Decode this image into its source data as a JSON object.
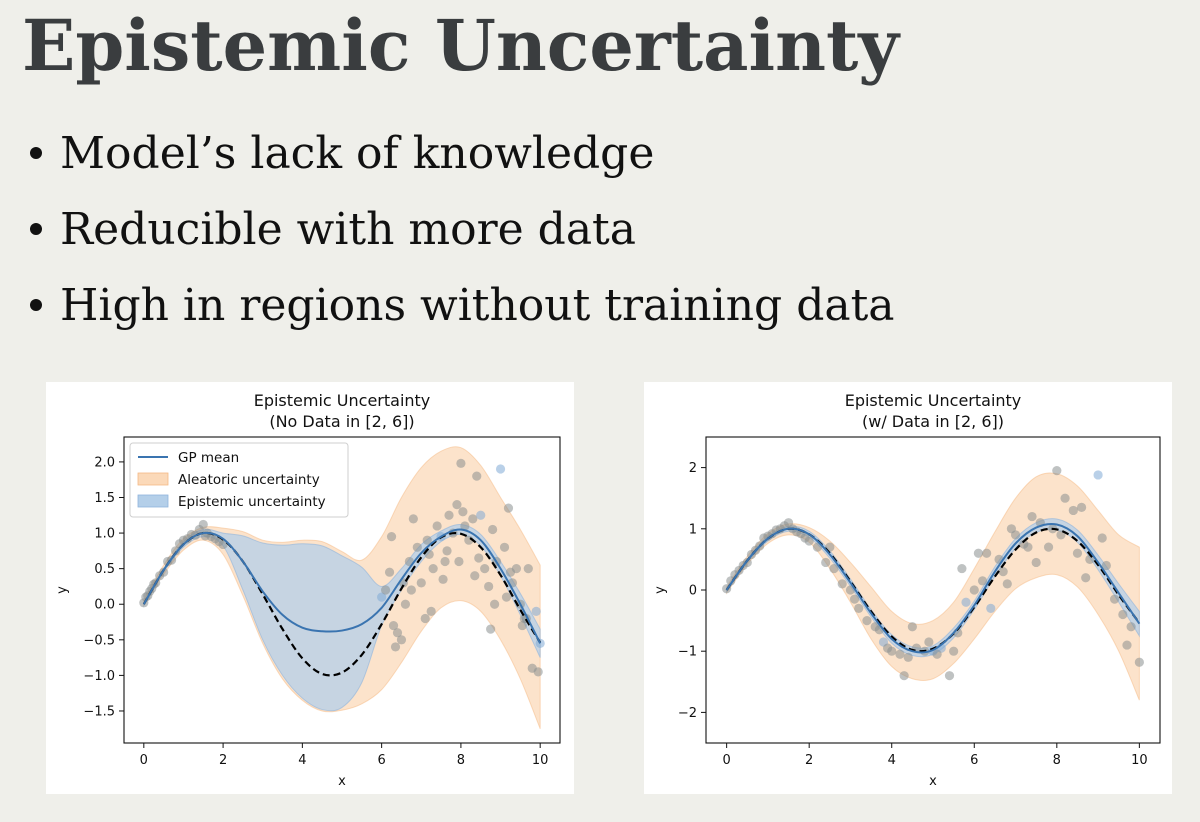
{
  "slide": {
    "title": "Epistemic Uncertainty",
    "bullets": [
      "Model’s lack of knowledge",
      "Reducible with more data",
      "High in regions without training data"
    ]
  },
  "colors": {
    "gp_mean": "#3a74b0",
    "true_function": "#000000",
    "aleatoric_fill": "#fbd9b9",
    "epistemic_fill": "#b4cfe9",
    "points": "#8a8f8f"
  },
  "chart_data": [
    {
      "type": "line",
      "title": "Epistemic Uncertainty",
      "subtitle": "(No Data in [2, 6])",
      "xlabel": "x",
      "ylabel": "y",
      "xlim": [
        -0.5,
        10.5
      ],
      "ylim": [
        -1.95,
        2.35
      ],
      "xticks": [
        0,
        2,
        4,
        6,
        8,
        10
      ],
      "yticks": [
        -1.5,
        -1.0,
        -0.5,
        0.0,
        0.5,
        1.0,
        1.5,
        2.0
      ],
      "ytick_labels": [
        "−1.5",
        "−1.0",
        "−0.5",
        "0.0",
        "0.5",
        "1.0",
        "1.5",
        "2.0"
      ],
      "legend": {
        "position": "top-left",
        "entries": [
          "GP mean",
          "Aleatoric uncertainty",
          "Epistemic uncertainty"
        ]
      },
      "series": [
        {
          "name": "GP mean",
          "x": [
            0,
            0.5,
            1,
            1.5,
            2,
            2.5,
            3,
            3.5,
            4,
            4.5,
            5,
            5.5,
            6,
            6.5,
            7,
            7.5,
            8,
            8.5,
            9,
            9.5,
            10
          ],
          "y": [
            0.0,
            0.48,
            0.84,
            1.0,
            0.92,
            0.6,
            0.18,
            -0.15,
            -0.33,
            -0.38,
            -0.37,
            -0.28,
            -0.05,
            0.35,
            0.72,
            0.95,
            1.05,
            0.9,
            0.5,
            0.0,
            -0.55
          ]
        },
        {
          "name": "true function",
          "x": [
            0,
            0.5,
            1,
            1.5,
            2,
            2.5,
            3,
            3.5,
            4,
            4.5,
            5,
            5.5,
            6,
            6.5,
            7,
            7.5,
            8,
            8.5,
            9,
            9.5,
            10
          ],
          "y": [
            0.0,
            0.48,
            0.84,
            1.0,
            0.91,
            0.6,
            0.14,
            -0.35,
            -0.76,
            -0.98,
            -0.96,
            -0.71,
            -0.28,
            0.22,
            0.66,
            0.94,
            0.99,
            0.8,
            0.41,
            -0.08,
            -0.54
          ]
        }
      ],
      "aleatoric_band": {
        "x": [
          0,
          0.5,
          1,
          1.5,
          2,
          2.5,
          3,
          3.5,
          4,
          4.5,
          5,
          5.5,
          6,
          6.5,
          7,
          7.5,
          8,
          8.5,
          9,
          9.5,
          10
        ],
        "lower": [
          0.0,
          0.42,
          0.76,
          0.9,
          0.7,
          0.12,
          -0.55,
          -1.05,
          -1.35,
          -1.5,
          -1.49,
          -1.4,
          -1.2,
          -0.82,
          -0.38,
          -0.05,
          0.05,
          -0.1,
          -0.5,
          -1.05,
          -1.75
        ],
        "upper": [
          0.05,
          0.55,
          0.92,
          1.08,
          1.07,
          1.02,
          0.9,
          0.87,
          0.9,
          0.88,
          0.74,
          0.62,
          0.95,
          1.5,
          1.92,
          2.15,
          2.2,
          1.95,
          1.5,
          1.05,
          0.55
        ]
      },
      "epistemic_band": {
        "x": [
          0,
          0.5,
          1,
          1.5,
          2,
          2.5,
          3,
          3.5,
          4,
          4.5,
          5,
          5.5,
          6,
          6.5,
          7,
          7.5,
          8,
          8.5,
          9,
          9.5,
          10
        ],
        "lower": [
          -0.02,
          0.45,
          0.8,
          0.95,
          0.82,
          0.2,
          -0.5,
          -1.0,
          -1.32,
          -1.48,
          -1.45,
          -1.1,
          -0.3,
          0.2,
          0.6,
          0.88,
          0.98,
          0.82,
          0.4,
          -0.15,
          -0.75
        ],
        "upper": [
          0.02,
          0.5,
          0.88,
          1.05,
          1.0,
          0.96,
          0.86,
          0.83,
          0.85,
          0.82,
          0.68,
          0.52,
          0.25,
          0.5,
          0.84,
          1.03,
          1.12,
          0.98,
          0.6,
          0.15,
          -0.35
        ]
      },
      "scatter": {
        "x": [
          0,
          0.05,
          0.1,
          0.15,
          0.2,
          0.25,
          0.3,
          0.4,
          0.5,
          0.6,
          0.7,
          0.8,
          0.9,
          1.0,
          1.1,
          1.2,
          1.3,
          1.4,
          1.5,
          1.55,
          1.6,
          1.7,
          1.8,
          1.9,
          2.0,
          6.0,
          6.1,
          6.2,
          6.25,
          6.3,
          6.4,
          6.5,
          6.6,
          6.7,
          6.8,
          6.9,
          7.0,
          7.1,
          7.2,
          7.3,
          7.4,
          7.5,
          7.6,
          7.7,
          7.8,
          7.9,
          8.0,
          8.1,
          8.2,
          8.3,
          8.4,
          8.5,
          8.6,
          8.7,
          8.8,
          8.9,
          9.0,
          9.1,
          9.2,
          9.3,
          9.4,
          9.5,
          9.6,
          9.7,
          9.8,
          9.9,
          10.0,
          6.35,
          6.75,
          7.15,
          7.55,
          7.95,
          8.35,
          8.75,
          9.15,
          9.55,
          9.95,
          6.55,
          7.25,
          7.65,
          8.05,
          8.45,
          8.85,
          9.25,
          9.65
        ],
        "y": [
          0.02,
          0.1,
          0.12,
          0.18,
          0.22,
          0.28,
          0.3,
          0.4,
          0.45,
          0.6,
          0.62,
          0.75,
          0.85,
          0.9,
          0.92,
          0.98,
          0.97,
          1.05,
          1.12,
          0.96,
          1.0,
          0.95,
          0.92,
          0.88,
          0.84,
          0.1,
          0.2,
          0.45,
          0.95,
          -0.3,
          -0.4,
          -0.5,
          0.0,
          0.6,
          1.2,
          0.8,
          0.3,
          -0.2,
          0.7,
          0.5,
          1.1,
          0.95,
          0.6,
          1.25,
          1.0,
          1.4,
          1.98,
          1.1,
          0.9,
          1.2,
          1.8,
          1.25,
          0.5,
          0.25,
          1.05,
          0.6,
          1.9,
          0.8,
          1.35,
          0.3,
          0.5,
          0.0,
          -0.2,
          0.5,
          -0.9,
          -0.1,
          -0.55,
          -0.6,
          0.2,
          0.9,
          0.35,
          0.6,
          0.4,
          -0.35,
          0.1,
          -0.3,
          -0.95,
          0.3,
          -0.1,
          0.75,
          1.3,
          0.65,
          0.0,
          0.45,
          -0.2
        ],
        "highlighted_x": [
          6.0,
          8.5,
          9.0,
          10.0,
          9.9,
          7.5
        ]
      }
    },
    {
      "type": "line",
      "title": "Epistemic Uncertainty",
      "subtitle": "(w/ Data in [2, 6])",
      "xlabel": "x",
      "ylabel": "y",
      "xlim": [
        -0.5,
        10.5
      ],
      "ylim": [
        -2.5,
        2.5
      ],
      "xticks": [
        0,
        2,
        4,
        6,
        8,
        10
      ],
      "yticks": [
        -2,
        -1,
        0,
        1,
        2
      ],
      "ytick_labels": [
        "−2",
        "−1",
        "0",
        "1",
        "2"
      ],
      "series": [
        {
          "name": "GP mean",
          "x": [
            0,
            0.5,
            1,
            1.5,
            2,
            2.5,
            3,
            3.5,
            4,
            4.5,
            5,
            5.5,
            6,
            6.5,
            7,
            7.5,
            8,
            8.5,
            9,
            9.5,
            10
          ],
          "y": [
            0.0,
            0.48,
            0.84,
            1.0,
            0.91,
            0.58,
            0.12,
            -0.38,
            -0.8,
            -1.0,
            -0.98,
            -0.7,
            -0.25,
            0.3,
            0.76,
            1.02,
            1.07,
            0.88,
            0.45,
            -0.05,
            -0.55
          ]
        },
        {
          "name": "true function",
          "x": [
            0,
            0.5,
            1,
            1.5,
            2,
            2.5,
            3,
            3.5,
            4,
            4.5,
            5,
            5.5,
            6,
            6.5,
            7,
            7.5,
            8,
            8.5,
            9,
            9.5,
            10
          ],
          "y": [
            0.0,
            0.48,
            0.84,
            1.0,
            0.91,
            0.6,
            0.14,
            -0.35,
            -0.76,
            -0.98,
            -0.96,
            -0.71,
            -0.28,
            0.22,
            0.66,
            0.94,
            0.99,
            0.8,
            0.41,
            -0.08,
            -0.54
          ]
        }
      ],
      "aleatoric_band": {
        "x": [
          0,
          0.5,
          1,
          1.5,
          2,
          2.5,
          3,
          3.5,
          4,
          4.5,
          5,
          5.5,
          6,
          6.5,
          7,
          7.5,
          8,
          8.5,
          9,
          9.5,
          10
        ],
        "lower": [
          -0.05,
          0.42,
          0.76,
          0.9,
          0.78,
          0.35,
          -0.2,
          -0.8,
          -1.25,
          -1.45,
          -1.45,
          -1.2,
          -0.8,
          -0.35,
          0.02,
          0.2,
          0.25,
          0.05,
          -0.4,
          -1.0,
          -1.8
        ],
        "upper": [
          0.05,
          0.55,
          0.92,
          1.08,
          1.02,
          0.8,
          0.45,
          0.05,
          -0.35,
          -0.55,
          -0.5,
          -0.2,
          0.35,
          0.95,
          1.5,
          1.85,
          1.9,
          1.7,
          1.3,
          0.9,
          0.7
        ]
      },
      "epistemic_band": {
        "x": [
          0,
          0.5,
          1,
          1.5,
          2,
          2.5,
          3,
          3.5,
          4,
          4.5,
          5,
          5.5,
          6,
          6.5,
          7,
          7.5,
          8,
          8.5,
          9,
          9.5,
          10
        ],
        "lower": [
          -0.03,
          0.45,
          0.8,
          0.96,
          0.86,
          0.52,
          0.06,
          -0.44,
          -0.87,
          -1.07,
          -1.05,
          -0.78,
          -0.32,
          0.22,
          0.68,
          0.94,
          0.98,
          0.78,
          0.33,
          -0.2,
          -0.75
        ],
        "upper": [
          0.03,
          0.51,
          0.88,
          1.04,
          0.96,
          0.64,
          0.18,
          -0.32,
          -0.73,
          -0.93,
          -0.91,
          -0.62,
          -0.18,
          0.38,
          0.84,
          1.1,
          1.16,
          0.98,
          0.57,
          0.1,
          -0.35
        ]
      },
      "scatter": {
        "x": [
          0,
          0.1,
          0.2,
          0.3,
          0.4,
          0.5,
          0.6,
          0.7,
          0.8,
          0.9,
          1.0,
          1.1,
          1.2,
          1.3,
          1.4,
          1.5,
          1.6,
          1.7,
          1.8,
          1.9,
          2.0,
          2.2,
          2.4,
          2.6,
          2.8,
          3.0,
          3.2,
          3.4,
          3.6,
          3.8,
          4.0,
          4.2,
          4.4,
          4.6,
          4.8,
          5.0,
          5.2,
          5.4,
          5.6,
          5.8,
          6.0,
          6.2,
          6.4,
          6.6,
          6.8,
          7.0,
          7.2,
          7.4,
          7.6,
          7.8,
          8.0,
          8.2,
          8.4,
          8.6,
          8.8,
          9.0,
          9.2,
          9.4,
          9.6,
          9.8,
          10.0,
          2.5,
          3.1,
          3.7,
          4.3,
          4.9,
          5.5,
          6.1,
          6.7,
          7.3,
          7.9,
          8.5,
          9.1,
          9.7,
          3.9,
          4.5,
          5.1,
          5.7,
          6.3,
          6.9,
          7.5,
          8.1,
          8.7
        ],
        "y": [
          0.02,
          0.15,
          0.25,
          0.32,
          0.4,
          0.45,
          0.58,
          0.65,
          0.72,
          0.85,
          0.88,
          0.92,
          0.98,
          1.0,
          1.05,
          1.1,
          1.0,
          0.95,
          0.92,
          0.85,
          0.8,
          0.7,
          0.45,
          0.35,
          0.1,
          0.0,
          -0.3,
          -0.5,
          -0.6,
          -0.85,
          -1.0,
          -1.05,
          -1.1,
          -0.95,
          -1.0,
          -1.0,
          -0.95,
          -1.4,
          -0.7,
          -0.2,
          0.0,
          0.15,
          -0.3,
          0.5,
          0.1,
          0.9,
          0.75,
          1.2,
          1.1,
          0.7,
          1.95,
          1.5,
          1.3,
          1.35,
          0.5,
          1.88,
          0.4,
          -0.15,
          -0.4,
          -0.6,
          -1.18,
          0.7,
          -0.15,
          -0.65,
          -1.4,
          -0.85,
          -1.0,
          0.6,
          0.3,
          0.7,
          1.0,
          0.6,
          0.85,
          -0.9,
          -0.95,
          -0.6,
          -1.05,
          0.35,
          0.6,
          1.0,
          0.45,
          0.9,
          0.2
        ],
        "highlighted_x": [
          3.8,
          5.0,
          5.2,
          5.8,
          6.4,
          9.0
        ]
      }
    }
  ]
}
